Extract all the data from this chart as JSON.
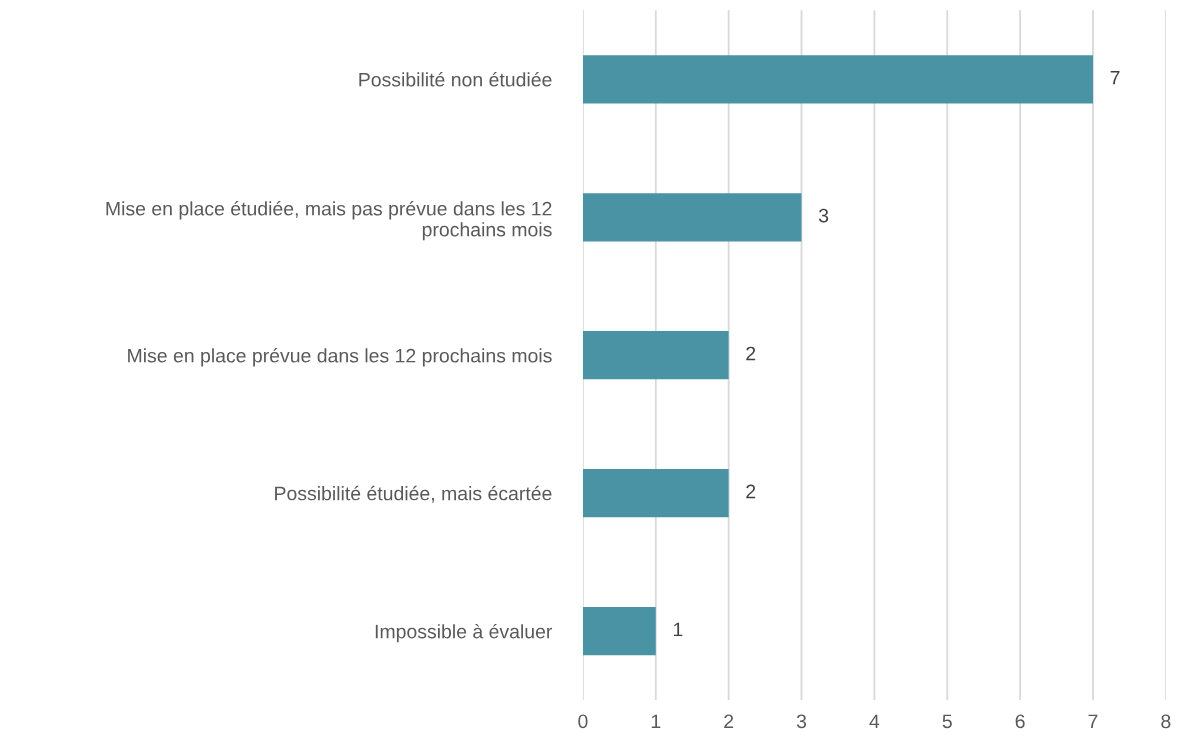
{
  "chart_data": {
    "type": "bar",
    "orientation": "horizontal",
    "categories": [
      "Possibilité non étudiée",
      "Mise en place étudiée, mais pas prévue dans les 12\nprochains mois",
      "Mise en place prévue dans les 12 prochains mois",
      "Possibilité étudiée, mais écartée",
      "Impossible à évaluer"
    ],
    "values": [
      7,
      3,
      2,
      2,
      1
    ],
    "color": "#4a93a5",
    "xlim": [
      0,
      8
    ],
    "xticks": [
      0,
      1,
      2,
      3,
      4,
      5,
      6,
      7,
      8
    ],
    "grid": "x",
    "data_labels": true,
    "legend": false
  }
}
